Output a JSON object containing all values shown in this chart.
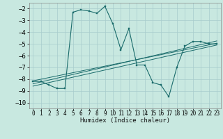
{
  "title": "",
  "xlabel": "Humidex (Indice chaleur)",
  "bg_color": "#c8e8e0",
  "grid_color": "#a8cccc",
  "line_color": "#1a6b6b",
  "xlim": [
    -0.5,
    23.5
  ],
  "ylim": [
    -10.5,
    -1.5
  ],
  "xticks": [
    0,
    1,
    2,
    3,
    4,
    5,
    6,
    7,
    8,
    9,
    10,
    11,
    12,
    13,
    14,
    15,
    16,
    17,
    18,
    19,
    20,
    21,
    22,
    23
  ],
  "yticks": [
    -10,
    -9,
    -8,
    -7,
    -6,
    -5,
    -4,
    -3,
    -2
  ],
  "series": [
    [
      0,
      -8.2
    ],
    [
      1,
      -8.2
    ],
    [
      2,
      -8.5
    ],
    [
      3,
      -8.8
    ],
    [
      4,
      -8.8
    ],
    [
      5,
      -2.3
    ],
    [
      6,
      -2.1
    ],
    [
      7,
      -2.2
    ],
    [
      8,
      -2.4
    ],
    [
      9,
      -1.8
    ],
    [
      10,
      -3.3
    ],
    [
      11,
      -5.5
    ],
    [
      12,
      -3.7
    ],
    [
      13,
      -6.8
    ],
    [
      14,
      -6.8
    ],
    [
      15,
      -8.3
    ],
    [
      16,
      -8.5
    ],
    [
      17,
      -9.5
    ],
    [
      18,
      -7.0
    ],
    [
      19,
      -5.2
    ],
    [
      20,
      -4.8
    ],
    [
      21,
      -4.8
    ],
    [
      22,
      -5.0
    ],
    [
      23,
      -5.0
    ]
  ],
  "linear1": [
    [
      0,
      -8.15
    ],
    [
      23,
      -4.95
    ]
  ],
  "linear2": [
    [
      0,
      -8.4
    ],
    [
      23,
      -4.75
    ]
  ],
  "linear3": [
    [
      0,
      -8.6
    ],
    [
      23,
      -5.1
    ]
  ]
}
